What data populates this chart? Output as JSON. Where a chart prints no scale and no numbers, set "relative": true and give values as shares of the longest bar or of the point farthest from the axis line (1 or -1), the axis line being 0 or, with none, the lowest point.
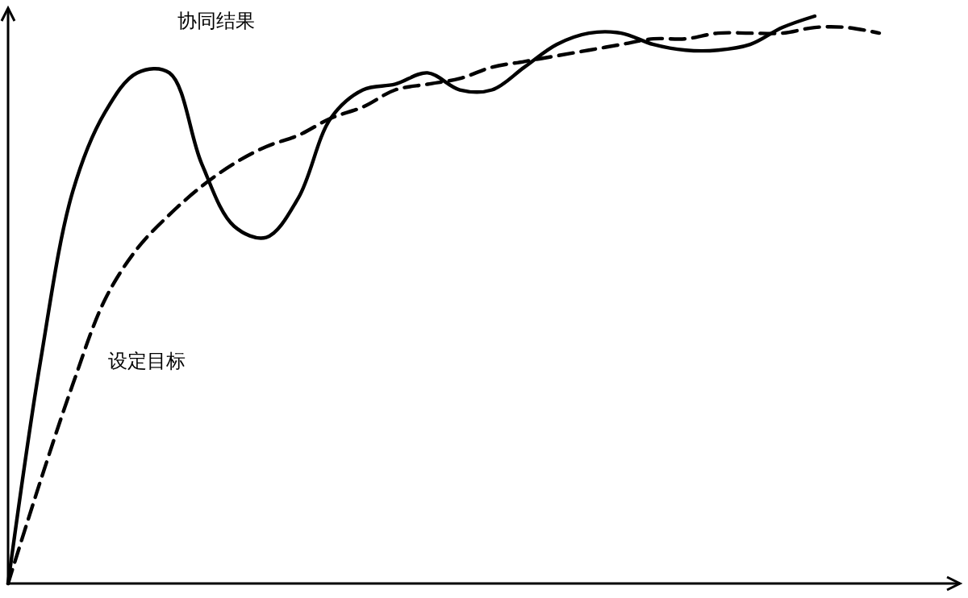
{
  "chart_data": {
    "type": "line",
    "relative": true,
    "categories": [
      null,
      null,
      null,
      null,
      null,
      null,
      null,
      null,
      null,
      null,
      null,
      null,
      null,
      null,
      null,
      null,
      null,
      null,
      null,
      null,
      null,
      null,
      null,
      null,
      null,
      null,
      null,
      null,
      null,
      null
    ],
    "series": [
      {
        "name": "协同结果",
        "color": "#000000",
        "line_style": "solid",
        "values": [
          0,
          0.39,
          0.69,
          0.83,
          0.9,
          0.9,
          0.74,
          0.63,
          0.61,
          0.68,
          0.82,
          0.87,
          0.88,
          0.9,
          0.87,
          0.87,
          0.91,
          0.95,
          0.97,
          0.97,
          0.95,
          0.94,
          0.94,
          0.95,
          0.98,
          1,
          null,
          null,
          null,
          null
        ]
      },
      {
        "name": "设定目标",
        "color": "#000000",
        "line_style": "dashed",
        "values": [
          0,
          0.18,
          0.35,
          0.5,
          0.59,
          0.65,
          0.7,
          0.74,
          0.77,
          0.79,
          0.82,
          0.84,
          0.87,
          0.88,
          0.89,
          0.91,
          0.92,
          0.93,
          0.94,
          0.95,
          0.96,
          0.96,
          0.97,
          0.97,
          0.97,
          0.98,
          0.98,
          0.97,
          null,
          null
        ]
      }
    ],
    "marker": "none"
  }
}
